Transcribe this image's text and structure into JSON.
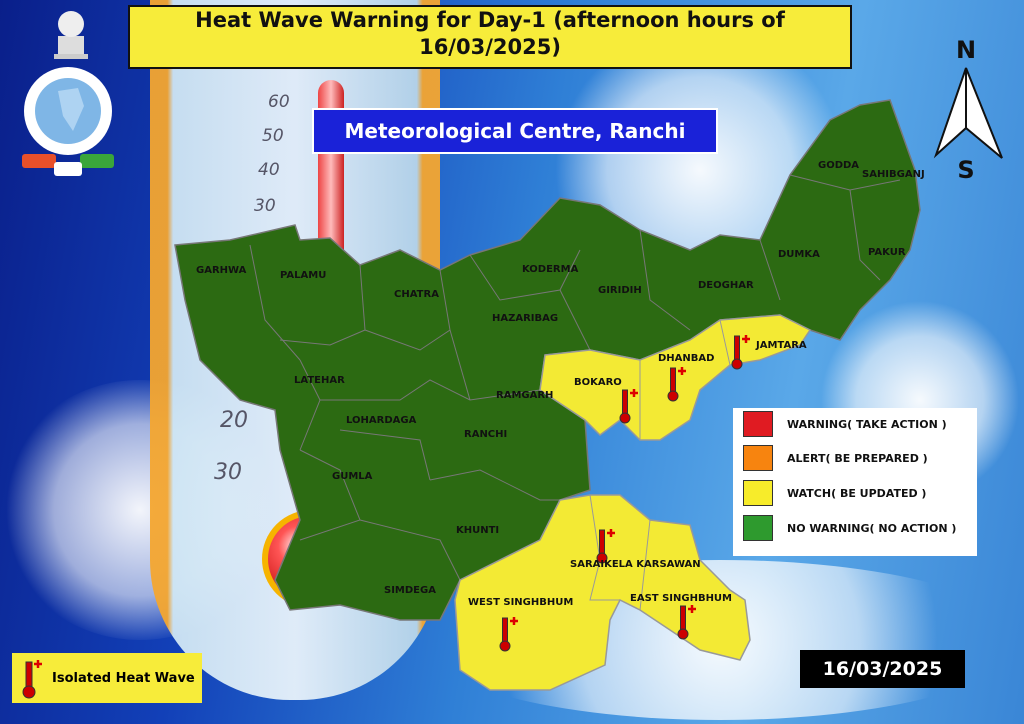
{
  "title": {
    "line1": "Heat Wave Warning for Day-1 (afternoon hours of",
    "line2": "16/03/2025)"
  },
  "centre": "Meteorological Centre, Ranchi",
  "compass": {
    "north": "N",
    "south": "S"
  },
  "thermometer_ticks": [
    "60",
    "50",
    "40",
    "30",
    "20",
    "30"
  ],
  "legend": [
    {
      "label": "WARNING( TAKE ACTION )",
      "color": "#e01b22"
    },
    {
      "label": "ALERT( BE PREPARED )",
      "color": "#f7840f"
    },
    {
      "label": "WATCH( BE UPDATED )",
      "color": "#f7ec2a"
    },
    {
      "label": "NO WARNING( NO ACTION )",
      "color": "#2e9a2e"
    }
  ],
  "heatwave_legend": {
    "label": "Isolated Heat Wave",
    "icon": "thermometer-plus-icon"
  },
  "date": "16/03/2025",
  "map_colors": {
    "no_warning": "#2c6a12",
    "watch": "#f3ea34",
    "border": "#8a8a8a"
  },
  "districts": {
    "garhwa": "GARHWA",
    "palamu": "PALAMU",
    "chatra": "CHATRA",
    "koderma": "KODERMA",
    "giridih": "GIRIDIH",
    "deoghar": "DEOGHAR",
    "godda": "GODDA",
    "sahibganj": "SAHIBGANJ",
    "dumka": "DUMKA",
    "pakur": "PAKUR",
    "hazaribag": "HAZARIBAG",
    "latehar": "LATEHAR",
    "ramgarh": "RAMGARH",
    "bokaro": "BOKARO",
    "dhanbad": "DHANBAD",
    "jamtara": "JAMTARA",
    "lohardaga": "LOHARDAGA",
    "ranchi": "RANCHI",
    "gumla": "GUMLA",
    "khunti": "KHUNTI",
    "simdega": "SIMDEGA",
    "west_singhbhum": "WEST SINGHBHUM",
    "saraikela": "SARAIKELA KARSAWAN",
    "east_singhbhum": "EAST SINGHBHUM"
  },
  "watch_districts": [
    "BOKARO",
    "DHANBAD",
    "JAMTARA",
    "SARAIKELA KARSAWAN",
    "WEST SINGHBHUM",
    "EAST SINGHBHUM"
  ]
}
